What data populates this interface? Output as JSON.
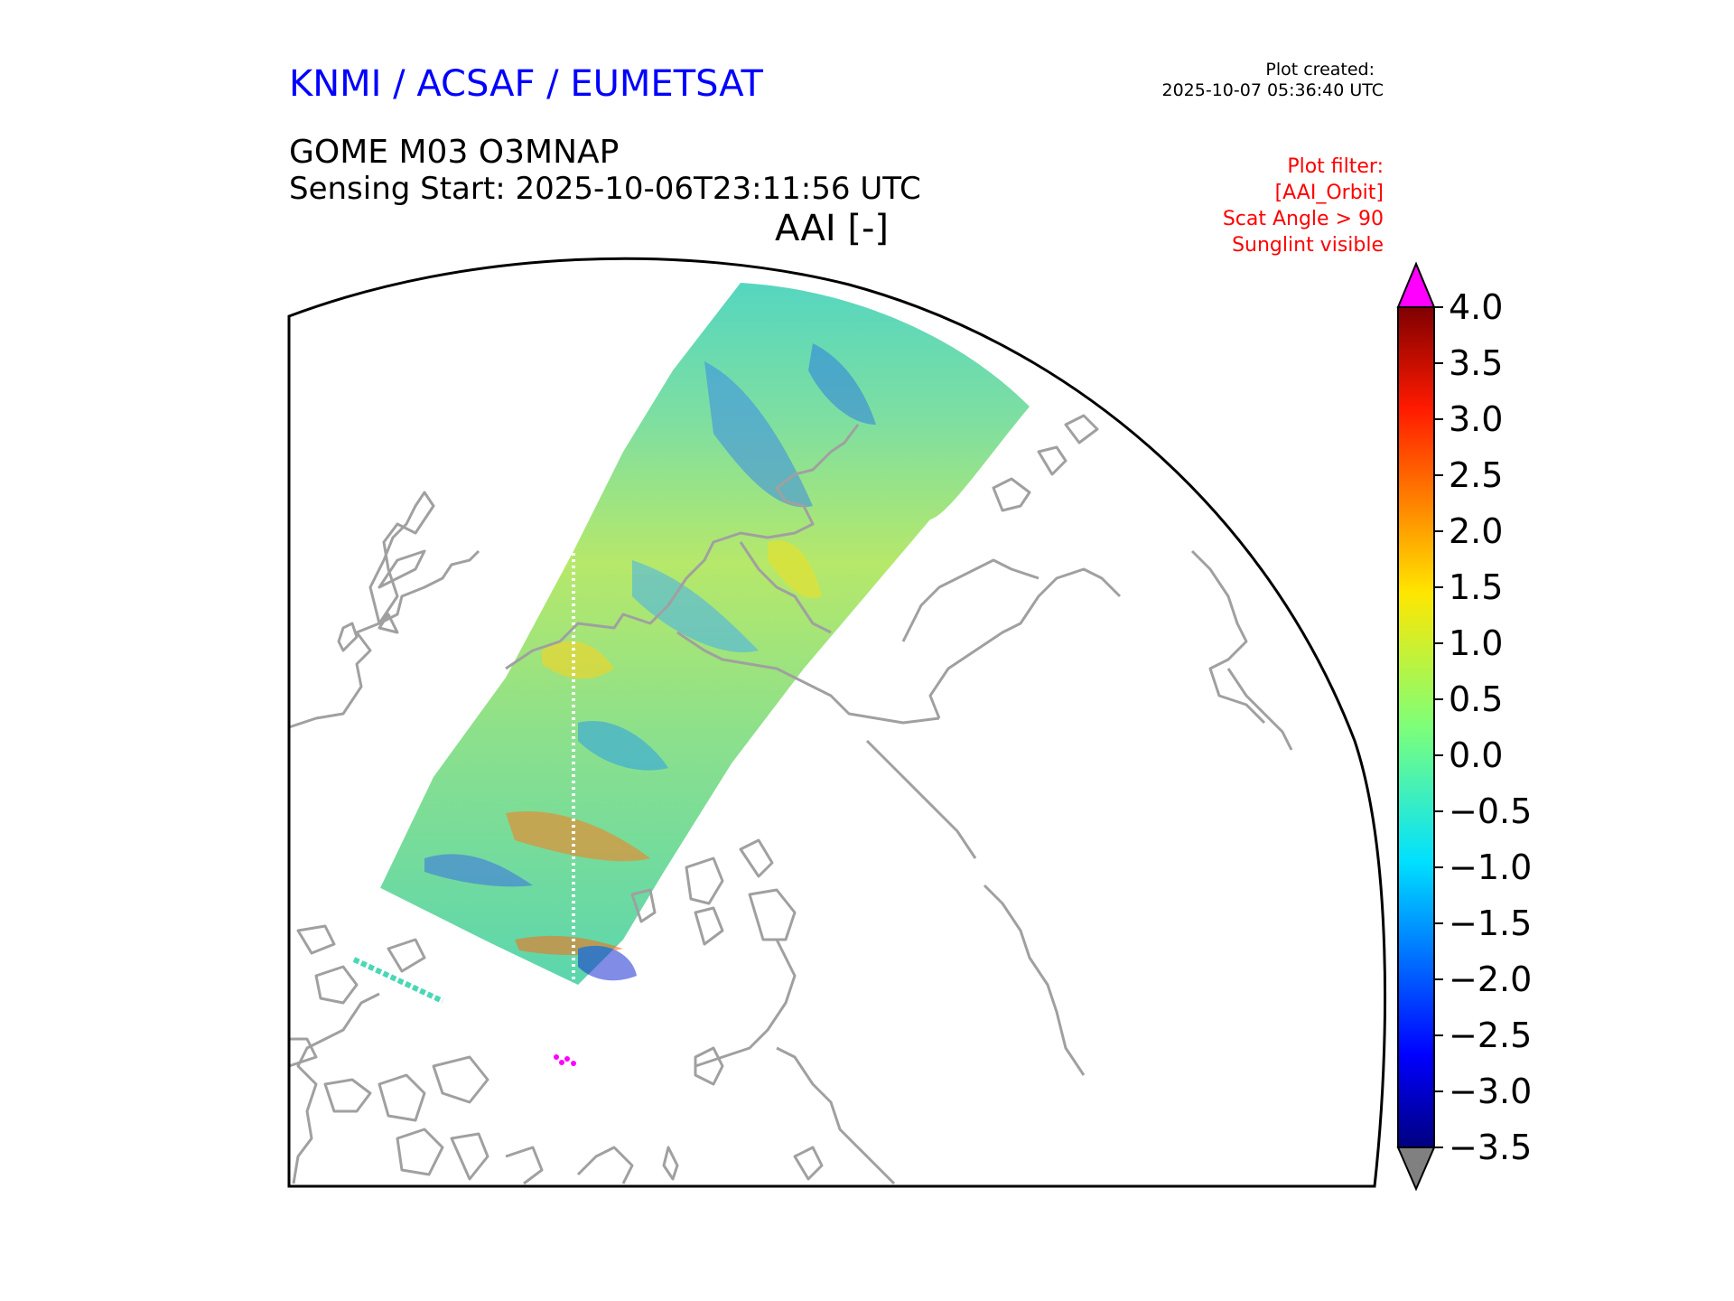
{
  "header": {
    "organization": "KNMI / ACSAF / EUMETSAT",
    "plot_created_label": "Plot created:",
    "plot_created_value": "2025-10-07 05:36:40 UTC",
    "product": "GOME M03 O3MNAP",
    "sensing_start": "Sensing Start: 2025-10-06T23:11:56 UTC",
    "variable": "AAI [-]",
    "filter_lines": [
      "Plot filter:",
      "[AAI_Orbit]",
      "Scat Angle > 90",
      "Sunglint visible"
    ]
  },
  "colorbar": {
    "ticks": [
      "4.0",
      "3.5",
      "3.0",
      "2.5",
      "2.0",
      "1.5",
      "1.0",
      "0.5",
      "0.0",
      "−0.5",
      "−1.0",
      "−1.5",
      "−2.0",
      "−2.5",
      "−3.0",
      "−3.5"
    ],
    "min": -3.5,
    "max": 4.0,
    "over_color": "#ff00ff",
    "under_color": "#808080",
    "colormap": "jet"
  },
  "map": {
    "coastline_color": "#a0a0a0",
    "projection": "north polar stereographic"
  }
}
